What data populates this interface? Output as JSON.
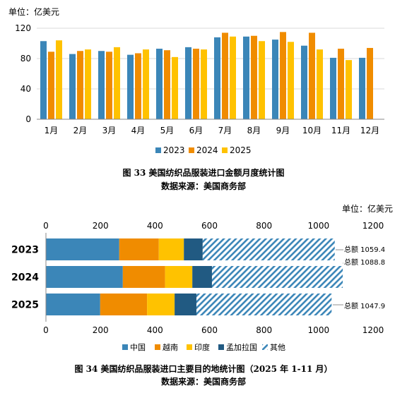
{
  "chart_data": [
    {
      "type": "bar",
      "unit_label": "单位：亿美元",
      "categories": [
        "1月",
        "2月",
        "3月",
        "4月",
        "5月",
        "6月",
        "7月",
        "8月",
        "9月",
        "10月",
        "11月",
        "12月"
      ],
      "series": [
        {
          "name": "2023",
          "color": "#3b86b8",
          "values": [
            103,
            86,
            90,
            85,
            93,
            95,
            108,
            109,
            105,
            97,
            81,
            81
          ]
        },
        {
          "name": "2024",
          "color": "#f08c00",
          "values": [
            89,
            90,
            89,
            87,
            91,
            93,
            114,
            110,
            115,
            114,
            93,
            94
          ]
        },
        {
          "name": "2025",
          "color": "#ffc200",
          "values": [
            104,
            92,
            95,
            92,
            82,
            92,
            109,
            103,
            102,
            92,
            78,
            null
          ]
        }
      ],
      "ylim": [
        0,
        120
      ],
      "yticks": [
        0,
        40,
        80,
        120
      ],
      "legend": "bottom",
      "caption_line1": "图 33  美国纺织品服装进口金额月度统计图",
      "caption_line2": "数据来源：美国商务部"
    },
    {
      "type": "bar",
      "orientation": "horizontal",
      "stacked": true,
      "unit_label": "单位：亿美元",
      "categories": [
        "2023",
        "2024",
        "2025"
      ],
      "series": [
        {
          "name": "中国",
          "color": "#3b86b8",
          "values": [
            269,
            282,
            199
          ]
        },
        {
          "name": "越南",
          "color": "#f08c00",
          "values": [
            145,
            155,
            172
          ]
        },
        {
          "name": "印度",
          "color": "#ffc200",
          "values": [
            92,
            100,
            101
          ]
        },
        {
          "name": "孟加拉国",
          "color": "#215a82",
          "values": [
            69,
            72,
            80
          ]
        },
        {
          "name": "其他",
          "color": "#3b86b8",
          "pattern": "hatch",
          "values": [
            484.4,
            479.8,
            495.9
          ]
        }
      ],
      "totals": [
        {
          "label": "总额 1059.4",
          "value": 1059.4
        },
        {
          "label": "总额 1088.8",
          "value": 1088.8
        },
        {
          "label": "总额 1047.9",
          "value": 1047.9
        }
      ],
      "xlim": [
        0,
        1200
      ],
      "xticks": [
        0,
        200,
        400,
        600,
        800,
        1000,
        1200
      ],
      "legend": "bottom",
      "caption_line1": "图 34  美国纺织品服装进口主要目的地统计图（2025 年 1-11 月）",
      "caption_line2": "数据来源：美国商务部"
    }
  ]
}
